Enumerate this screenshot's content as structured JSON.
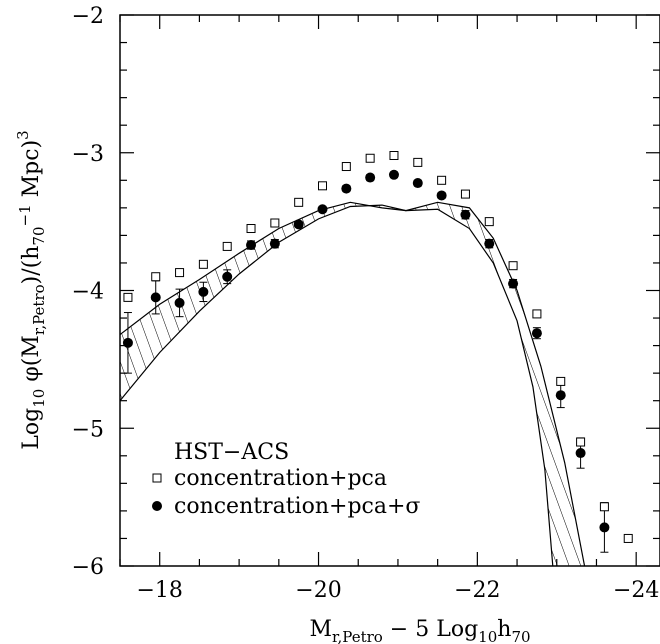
{
  "chart_data": {
    "type": "scatter",
    "xlabel": {
      "base": "M",
      "sub": "r,Petro",
      "mid": " − 5 Log",
      "sub2": "10",
      "mid2": "h",
      "sub3": "70"
    },
    "ylabel": "Log₁₀ φ(M_r,Petro)/(h₇₀⁻¹ Mpc)³",
    "ylabel_parts": {
      "pre": "Log",
      "sub1": "10",
      "phi": " φ(M",
      "sub2": "r,Petro",
      "mid": ")/(h",
      "sub3": "70",
      "sup3": "−1",
      "post": " Mpc)",
      "sup_end": "3"
    },
    "xlim": [
      -17.5,
      -24.3
    ],
    "ylim": [
      -6,
      -2
    ],
    "x_ticks": [
      -18,
      -20,
      -22,
      -24
    ],
    "x_tick_labels": [
      "−18",
      "−20",
      "−22",
      "−24"
    ],
    "y_ticks": [
      -2,
      -3,
      -4,
      -5,
      -6
    ],
    "y_tick_labels": [
      "−2",
      "−3",
      "−4",
      "−5",
      "−6"
    ],
    "legend": {
      "title": "HST−ACS",
      "entries": [
        {
          "label": "concentration+pca",
          "marker": "open-square"
        },
        {
          "label": "concentration+pca+σ",
          "marker": "filled-circle"
        }
      ]
    },
    "series": [
      {
        "name": "concentration+pca",
        "marker": "open-square",
        "points": [
          {
            "x": -17.6,
            "y": -4.05
          },
          {
            "x": -17.95,
            "y": -3.9
          },
          {
            "x": -18.25,
            "y": -3.87
          },
          {
            "x": -18.55,
            "y": -3.81
          },
          {
            "x": -18.85,
            "y": -3.68
          },
          {
            "x": -19.15,
            "y": -3.55
          },
          {
            "x": -19.45,
            "y": -3.51
          },
          {
            "x": -19.75,
            "y": -3.36
          },
          {
            "x": -20.05,
            "y": -3.24
          },
          {
            "x": -20.35,
            "y": -3.1
          },
          {
            "x": -20.65,
            "y": -3.04
          },
          {
            "x": -20.95,
            "y": -3.02
          },
          {
            "x": -21.25,
            "y": -3.07
          },
          {
            "x": -21.55,
            "y": -3.2
          },
          {
            "x": -21.85,
            "y": -3.3
          },
          {
            "x": -22.15,
            "y": -3.5
          },
          {
            "x": -22.45,
            "y": -3.82
          },
          {
            "x": -22.75,
            "y": -4.17
          },
          {
            "x": -23.05,
            "y": -4.66
          },
          {
            "x": -23.3,
            "y": -5.1
          },
          {
            "x": -23.6,
            "y": -5.57
          },
          {
            "x": -23.9,
            "y": -5.8
          }
        ]
      },
      {
        "name": "concentration+pca+σ",
        "marker": "filled-circle",
        "points": [
          {
            "x": -17.6,
            "y": -4.38,
            "err": 0.22
          },
          {
            "x": -17.95,
            "y": -4.05,
            "err": 0.12
          },
          {
            "x": -18.25,
            "y": -4.09,
            "err": 0.1
          },
          {
            "x": -18.55,
            "y": -4.01,
            "err": 0.07
          },
          {
            "x": -18.85,
            "y": -3.9,
            "err": 0.05
          },
          {
            "x": -19.15,
            "y": -3.67,
            "err": 0.03
          },
          {
            "x": -19.45,
            "y": -3.66,
            "err": 0.03
          },
          {
            "x": -19.75,
            "y": -3.52,
            "err": 0.02
          },
          {
            "x": -20.05,
            "y": -3.41,
            "err": 0.02
          },
          {
            "x": -20.35,
            "y": -3.26,
            "err": 0.02
          },
          {
            "x": -20.65,
            "y": -3.18,
            "err": 0.02
          },
          {
            "x": -20.95,
            "y": -3.16,
            "err": 0.02
          },
          {
            "x": -21.25,
            "y": -3.22,
            "err": 0.02
          },
          {
            "x": -21.55,
            "y": -3.31,
            "err": 0.02
          },
          {
            "x": -21.85,
            "y": -3.45,
            "err": 0.03
          },
          {
            "x": -22.15,
            "y": -3.66,
            "err": 0.03
          },
          {
            "x": -22.45,
            "y": -3.95,
            "err": 0.03
          },
          {
            "x": -22.75,
            "y": -4.31,
            "err": 0.04
          },
          {
            "x": -23.05,
            "y": -4.76,
            "err": 0.09
          },
          {
            "x": -23.3,
            "y": -5.18,
            "err": 0.11
          },
          {
            "x": -23.6,
            "y": -5.72,
            "err": 0.18
          }
        ]
      }
    ],
    "band": {
      "style": "hatched",
      "upper": [
        [
          -17.5,
          -4.32
        ],
        [
          -18.0,
          -4.1
        ],
        [
          -18.5,
          -3.92
        ],
        [
          -19.0,
          -3.73
        ],
        [
          -19.5,
          -3.55
        ],
        [
          -20.0,
          -3.42
        ],
        [
          -20.4,
          -3.36
        ],
        [
          -20.8,
          -3.4
        ],
        [
          -21.1,
          -3.42
        ],
        [
          -21.5,
          -3.36
        ],
        [
          -21.9,
          -3.4
        ],
        [
          -22.2,
          -3.62
        ],
        [
          -22.5,
          -4.0
        ],
        [
          -22.8,
          -4.55
        ],
        [
          -23.1,
          -5.25
        ],
        [
          -23.35,
          -6.0
        ]
      ],
      "lower": [
        [
          -17.5,
          -4.8
        ],
        [
          -18.0,
          -4.45
        ],
        [
          -18.5,
          -4.15
        ],
        [
          -19.0,
          -3.88
        ],
        [
          -19.5,
          -3.65
        ],
        [
          -20.0,
          -3.48
        ],
        [
          -20.4,
          -3.39
        ],
        [
          -20.8,
          -3.38
        ],
        [
          -21.1,
          -3.42
        ],
        [
          -21.5,
          -3.41
        ],
        [
          -21.9,
          -3.55
        ],
        [
          -22.2,
          -3.8
        ],
        [
          -22.5,
          -4.22
        ],
        [
          -22.7,
          -4.7
        ],
        [
          -22.85,
          -5.3
        ],
        [
          -22.95,
          -6.0
        ]
      ]
    }
  }
}
